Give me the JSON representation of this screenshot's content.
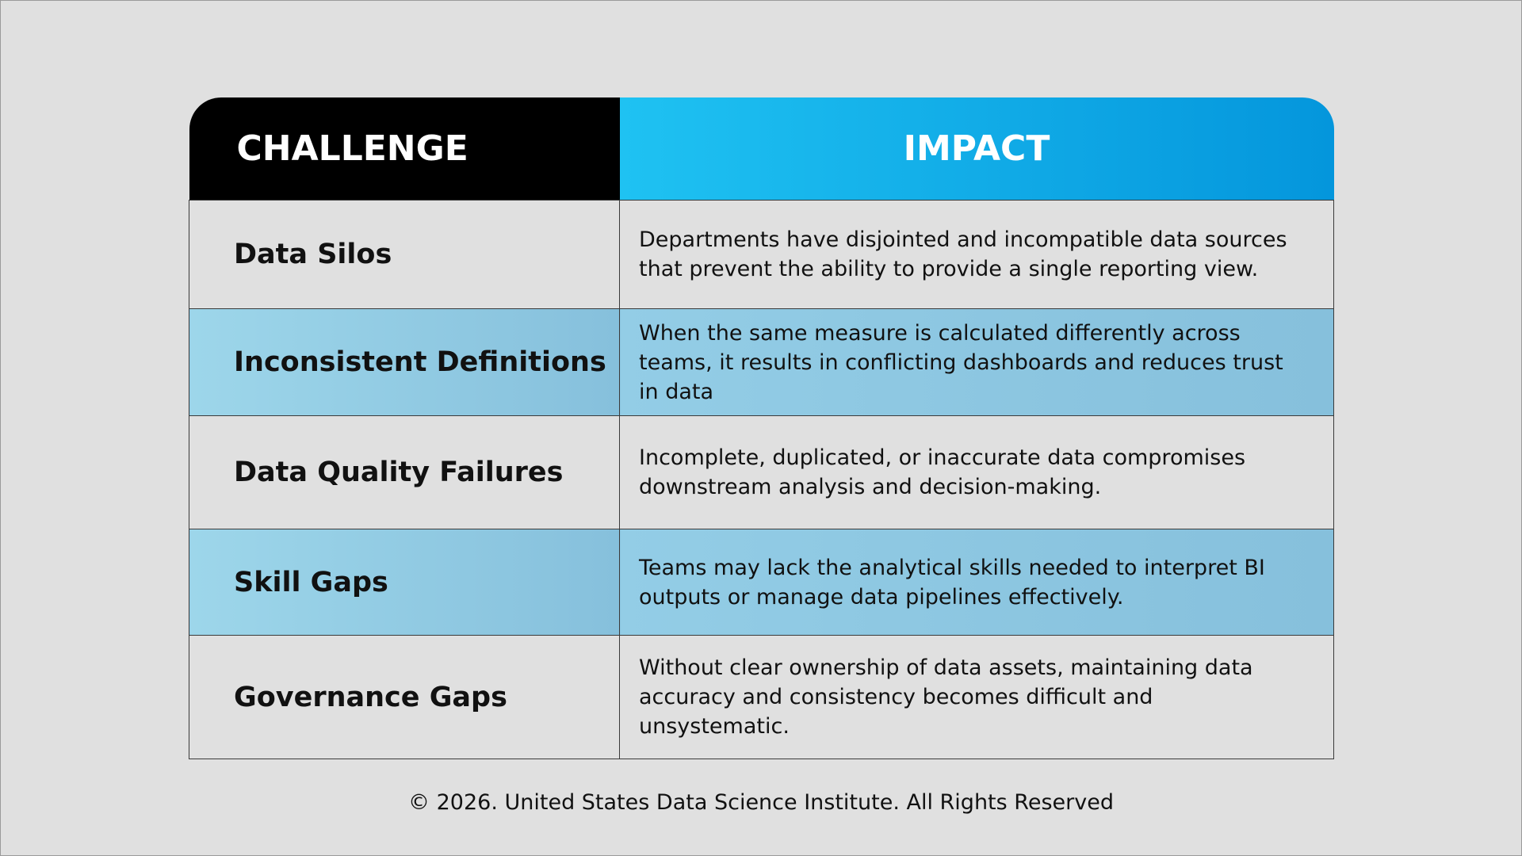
{
  "table": {
    "header": [
      "CHALLENGE",
      "IMPACT"
    ],
    "rows": [
      [
        "Data Silos",
        "Departments have disjointed and incompatible data sources that prevent the ability to provide a single reporting view."
      ],
      [
        "Inconsistent Definitions",
        "When the same measure is calculated differently across teams, it results in conflicting dashboards and reduces trust in data"
      ],
      [
        "Data Quality Failures",
        "Incomplete, duplicated, or inaccurate data compromises downstream analysis and decision-making."
      ],
      [
        "Skill Gaps",
        "Teams may lack the analytical skills needed to interpret BI outputs or manage data pipelines effectively."
      ],
      [
        "Governance Gaps",
        "Without clear ownership of data assets, maintaining data accuracy and consistency becomes difficult and unsystematic."
      ]
    ]
  },
  "footer": "© 2026. United States Data Science Institute. All Rights Reserved"
}
